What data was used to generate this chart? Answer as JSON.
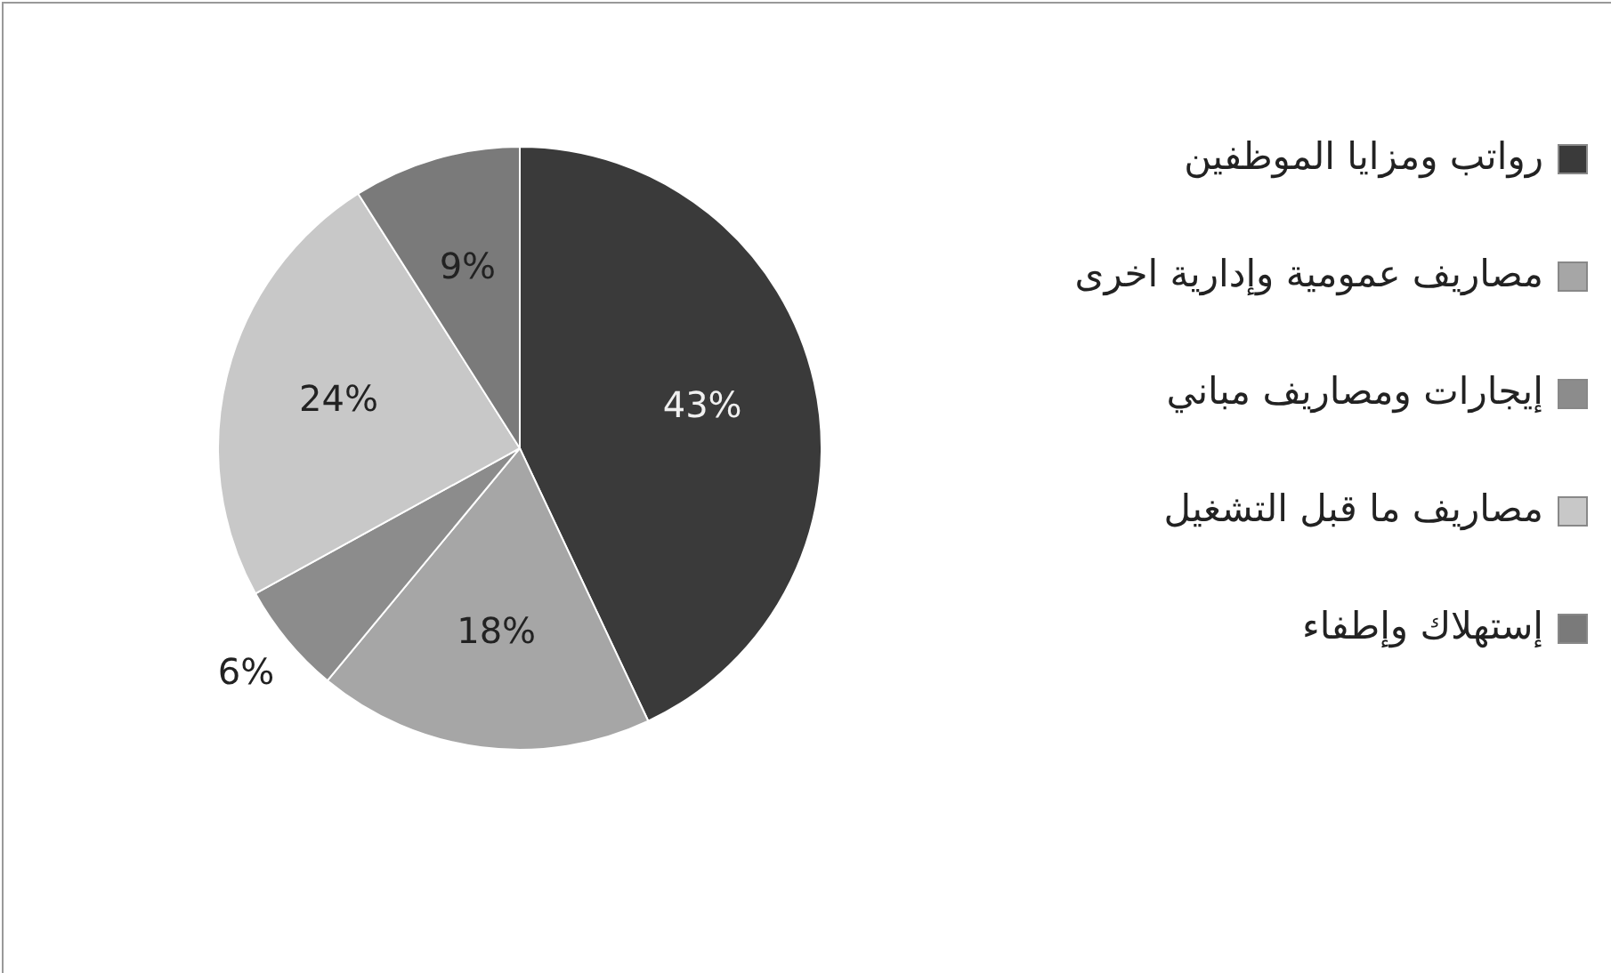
{
  "chart_data": {
    "type": "pie",
    "categories": [
      "رواتب ومزايا الموظفين",
      "مصاريف عمومية وإدارية اخرى",
      "إيجارات ومصاريف مباني",
      "مصاريف ما قبل التشغيل",
      "إستهلاك وإطفاء"
    ],
    "values": [
      43,
      18,
      6,
      24,
      9
    ],
    "colors": [
      "#3a3a3a",
      "#a6a6a6",
      "#8c8c8c",
      "#c8c8c8",
      "#7a7a7a"
    ],
    "value_labels": [
      "43%",
      "18%",
      "6%",
      "24%",
      "9%"
    ],
    "legend": "right"
  }
}
